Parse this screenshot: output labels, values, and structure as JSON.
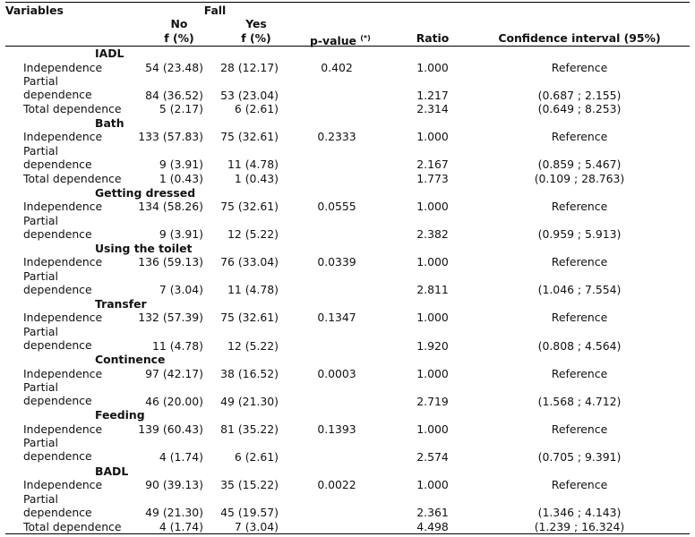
{
  "header": {
    "variables": "Variables",
    "fall": "Fall",
    "no": "No",
    "yes": "Yes",
    "no_sub": "f (%)",
    "yes_sub": "f (%)",
    "pvalue": "p-value",
    "pvalue_note": "(*)",
    "ratio": "Ratio",
    "ci": "Confidence interval (95%)"
  },
  "sections": [
    {
      "title": "IADL",
      "rows": [
        {
          "label": "Independence",
          "no": "54 (23.48)",
          "yes": "28 (12.17)",
          "p": "0.402",
          "ratio": "1.000",
          "ci": "Reference"
        },
        {
          "label": "Partial dependence",
          "no": "84 (36.52)",
          "yes": "53 (23.04)",
          "p": "",
          "ratio": "1.217",
          "ci": "(0.687 ; 2.155)"
        },
        {
          "label": "Total dependence",
          "no": "5 (2.17)",
          "yes": "6 (2.61)",
          "p": "",
          "ratio": "2.314",
          "ci": "(0.649 ; 8.253)"
        }
      ]
    },
    {
      "title": "Bath",
      "rows": [
        {
          "label": "Independence",
          "no": "133 (57.83)",
          "yes": "75 (32.61)",
          "p": "0.2333",
          "ratio": "1.000",
          "ci": "Reference"
        },
        {
          "label": "Partial dependence",
          "no": "9 (3.91)",
          "yes": "11 (4.78)",
          "p": "",
          "ratio": "2.167",
          "ci": "(0.859 ; 5.467)"
        },
        {
          "label": "Total dependence",
          "no": "1 (0.43)",
          "yes": "1 (0.43)",
          "p": "",
          "ratio": "1.773",
          "ci": "(0.109 ; 28.763)"
        }
      ]
    },
    {
      "title": "Getting dressed",
      "rows": [
        {
          "label": "Independence",
          "no": "134 (58.26)",
          "yes": "75 (32.61)",
          "p": "0.0555",
          "ratio": "1.000",
          "ci": "Reference"
        },
        {
          "label": "Partial dependence",
          "no": "9 (3.91)",
          "yes": "12 (5.22)",
          "p": "",
          "ratio": "2.382",
          "ci": "(0.959 ; 5.913)"
        }
      ]
    },
    {
      "title": "Using the toilet",
      "rows": [
        {
          "label": "Independence",
          "no": "136 (59.13)",
          "yes": "76 (33.04)",
          "p": "0.0339",
          "ratio": "1.000",
          "ci": "Reference"
        },
        {
          "label": "Partial dependence",
          "no": "7 (3.04)",
          "yes": "11 (4.78)",
          "p": "",
          "ratio": "2.811",
          "ci": "(1.046 ; 7.554)"
        }
      ]
    },
    {
      "title": "Transfer",
      "rows": [
        {
          "label": "Independence",
          "no": "132 (57.39)",
          "yes": "75 (32.61)",
          "p": "0.1347",
          "ratio": "1.000",
          "ci": "Reference"
        },
        {
          "label": "Partial dependence",
          "no": "11 (4.78)",
          "yes": "12 (5.22)",
          "p": "",
          "ratio": "1.920",
          "ci": "(0.808 ; 4.564)"
        }
      ]
    },
    {
      "title": "Continence",
      "rows": [
        {
          "label": "Independence",
          "no": "97 (42.17)",
          "yes": "38 (16.52)",
          "p": "0.0003",
          "ratio": "1.000",
          "ci": "Reference"
        },
        {
          "label": "Partial dependence",
          "no": "46 (20.00)",
          "yes": "49 (21.30)",
          "p": "",
          "ratio": "2.719",
          "ci": "(1.568 ; 4.712)"
        }
      ]
    },
    {
      "title": "Feeding",
      "rows": [
        {
          "label": "Independence",
          "no": "139 (60.43)",
          "yes": "81 (35.22)",
          "p": "0.1393",
          "ratio": "1.000",
          "ci": "Reference"
        },
        {
          "label": "Partial dependence",
          "no": "4 (1.74)",
          "yes": "6 (2.61)",
          "p": "",
          "ratio": "2.574",
          "ci": "(0.705 ; 9.391)"
        }
      ]
    },
    {
      "title": "BADL",
      "rows": [
        {
          "label": "Independence",
          "no": "90 (39.13)",
          "yes": "35 (15.22)",
          "p": "0.0022",
          "ratio": "1.000",
          "ci": "Reference"
        },
        {
          "label": "Partial dependence",
          "no": "49 (21.30)",
          "yes": "45 (19.57)",
          "p": "",
          "ratio": "2.361",
          "ci": "(1.346 ; 4.143)"
        },
        {
          "label": "Total dependence",
          "no": "4 (1.74)",
          "yes": "7 (3.04)",
          "p": "",
          "ratio": "4.498",
          "ci": "(1.239 ; 16.324)"
        }
      ]
    }
  ]
}
